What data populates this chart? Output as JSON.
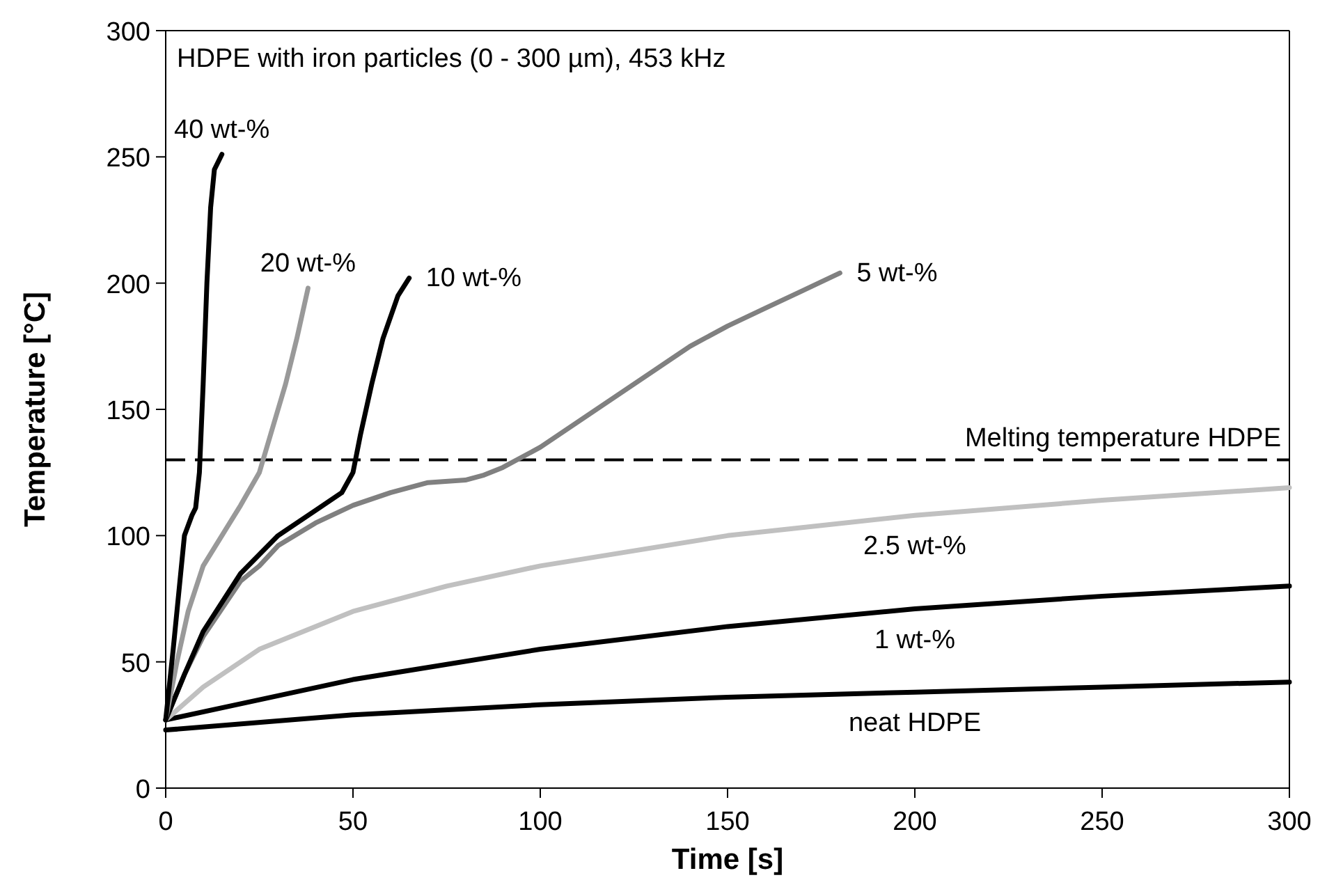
{
  "chart_data": {
    "type": "line",
    "xlabel": "Time [s]",
    "ylabel": "Temperature [°C]",
    "xlim": [
      0,
      300
    ],
    "ylim": [
      0,
      300
    ],
    "xticks": [
      0,
      50,
      100,
      150,
      200,
      250,
      300
    ],
    "yticks": [
      0,
      50,
      100,
      150,
      200,
      250,
      300
    ],
    "marker": "none",
    "line_style": "solid",
    "annotations": [
      "HDPE with iron particles (0 - 300 µm), 453 kHz"
    ],
    "ref_lines": [
      {
        "axis": "y",
        "value": 130,
        "label": "Melting temperature HDPE",
        "color": "#000000",
        "line_style": "dashed"
      }
    ],
    "series": [
      {
        "name": "neat HDPE",
        "color": "#000000",
        "x": [
          0,
          50,
          100,
          150,
          200,
          250,
          300
        ],
        "values": [
          23,
          29,
          33,
          36,
          38,
          40,
          42
        ]
      },
      {
        "name": "1 wt-%",
        "color": "#000000",
        "x": [
          0,
          25,
          50,
          100,
          150,
          200,
          250,
          300
        ],
        "values": [
          27,
          35,
          43,
          55,
          64,
          71,
          76,
          80
        ]
      },
      {
        "name": "2.5 wt-%",
        "color": "#c0c0c0",
        "x": [
          0,
          10,
          25,
          50,
          75,
          100,
          150,
          200,
          250,
          300
        ],
        "values": [
          27,
          40,
          55,
          70,
          80,
          88,
          100,
          108,
          114,
          119
        ]
      },
      {
        "name": "5 wt-%",
        "color": "#808080",
        "x": [
          0,
          5,
          10,
          20,
          25,
          30,
          40,
          50,
          60,
          70,
          80,
          85,
          90,
          100,
          110,
          120,
          130,
          140,
          150,
          160,
          170,
          180
        ],
        "values": [
          27,
          45,
          60,
          82,
          88,
          96,
          105,
          112,
          117,
          121,
          122,
          124,
          127,
          135,
          145,
          155,
          165,
          175,
          183,
          190,
          197,
          204
        ]
      },
      {
        "name": "10 wt-%",
        "color": "#000000",
        "x": [
          0,
          5,
          10,
          20,
          30,
          40,
          47,
          50,
          52,
          55,
          58,
          62,
          65
        ],
        "values": [
          27,
          45,
          62,
          85,
          100,
          110,
          117,
          125,
          140,
          160,
          178,
          195,
          202
        ]
      },
      {
        "name": "20 wt-%",
        "color": "#999999",
        "x": [
          0,
          3,
          6,
          10,
          15,
          20,
          25,
          28,
          32,
          35,
          38
        ],
        "values": [
          27,
          50,
          70,
          88,
          100,
          112,
          125,
          140,
          160,
          178,
          198
        ]
      },
      {
        "name": "40 wt-%",
        "color": "#000000",
        "x": [
          0,
          2,
          4,
          5,
          7,
          8,
          9,
          10,
          11,
          12,
          13,
          15
        ],
        "values": [
          27,
          55,
          85,
          100,
          108,
          111,
          125,
          160,
          200,
          230,
          245,
          251
        ]
      }
    ]
  }
}
